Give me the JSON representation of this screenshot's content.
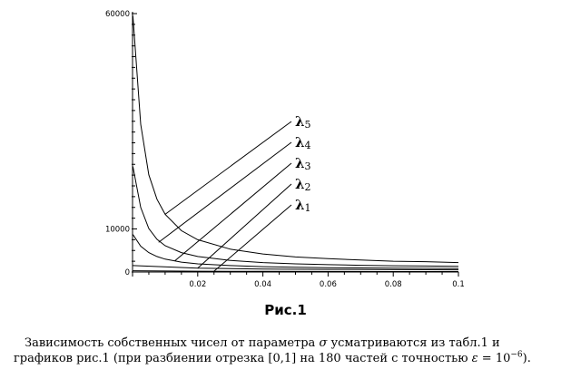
{
  "chart_data": {
    "type": "line",
    "title": "",
    "xlabel": "",
    "ylabel": "",
    "xlim": [
      0.0,
      0.1
    ],
    "ylim": [
      0,
      60000
    ],
    "x_ticks": [
      "0.02",
      "0.04",
      "0.06",
      "0.08",
      "0.1"
    ],
    "x_tick_values": [
      0.02,
      0.04,
      0.06,
      0.08,
      0.1
    ],
    "y_ticks": [
      "0",
      "10000",
      "60000"
    ],
    "y_tick_values": [
      0,
      10000,
      60000
    ],
    "grid": false,
    "series": [
      {
        "name": "λ5",
        "x": [
          0.0001,
          0.0025,
          0.005,
          0.0075,
          0.01,
          0.015,
          0.02,
          0.03,
          0.04,
          0.05,
          0.06,
          0.07,
          0.08,
          0.09,
          0.1
        ],
        "values": [
          59500,
          34300,
          22600,
          16900,
          13400,
          9600,
          7500,
          5300,
          4200,
          3500,
          3100,
          2800,
          2500,
          2400,
          2200
        ]
      },
      {
        "name": "λ4",
        "x": [
          0.0001,
          0.0025,
          0.005,
          0.0075,
          0.01,
          0.015,
          0.02,
          0.03,
          0.04,
          0.05,
          0.06,
          0.07,
          0.08,
          0.09,
          0.1
        ],
        "values": [
          24500,
          15000,
          10100,
          7600,
          6100,
          4500,
          3600,
          2700,
          2200,
          1900,
          1700,
          1550,
          1450,
          1380,
          1320
        ]
      },
      {
        "name": "λ3",
        "x": [
          0.0001,
          0.0025,
          0.005,
          0.0075,
          0.01,
          0.015,
          0.02,
          0.03,
          0.04,
          0.05,
          0.06,
          0.07,
          0.08,
          0.09,
          0.1
        ],
        "values": [
          8700,
          6000,
          4500,
          3600,
          3000,
          2300,
          1900,
          1500,
          1250,
          1100,
          1000,
          950,
          900,
          860,
          830
        ]
      },
      {
        "name": "λ2",
        "x": [
          0.0001,
          0.02,
          0.04,
          0.06,
          0.08,
          0.1
        ],
        "values": [
          1500,
          900,
          700,
          600,
          550,
          500
        ]
      },
      {
        "name": "λ1",
        "x": [
          0.0001,
          0.02,
          0.04,
          0.06,
          0.08,
          0.1
        ],
        "values": [
          300,
          200,
          150,
          120,
          110,
          100
        ]
      }
    ],
    "annotations": [
      {
        "label": "λ5",
        "base": "λ",
        "sub": "5",
        "points_to": [
          0.01,
          13400
        ]
      },
      {
        "label": "λ4",
        "base": "λ",
        "sub": "4",
        "points_to": [
          0.008,
          6900
        ]
      },
      {
        "label": "λ3",
        "base": "λ",
        "sub": "3",
        "points_to": [
          0.013,
          2600
        ]
      },
      {
        "label": "λ2",
        "base": "λ",
        "sub": "2",
        "points_to": [
          0.02,
          900
        ]
      },
      {
        "label": "λ1",
        "base": "λ",
        "sub": "1",
        "points_to": [
          0.025,
          180
        ]
      }
    ],
    "colors": {
      "line": "#000000",
      "axis": "#000000"
    }
  },
  "figure": {
    "label": "Рис.1"
  },
  "caption": {
    "line1_a": "Зависимость собственных чисел от параметра ",
    "sigma": "σ",
    "line1_b": " усматриваются из табл.1 и",
    "line2_a": "графиков рис.1 (при разбиении отрезка [0,1] на 180 частей с точностью ",
    "epsilon": "ε",
    "line2_b": " = 10",
    "exp": "−6",
    "line2_c": ")."
  }
}
